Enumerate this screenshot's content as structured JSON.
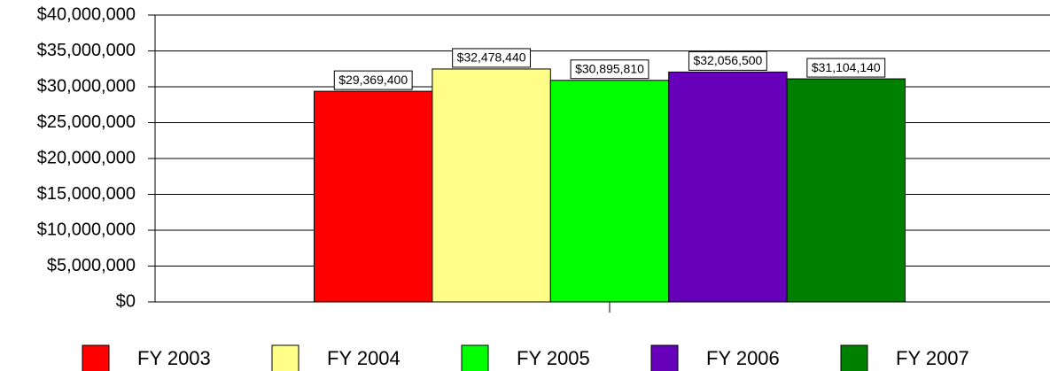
{
  "chart_data": {
    "type": "bar",
    "categories": [
      null
    ],
    "series": [
      {
        "name": "FY 2003",
        "color": "#ff0000",
        "values": [
          29369400
        ],
        "value_labels": [
          "$29,369,400"
        ]
      },
      {
        "name": "FY 2004",
        "color": "#ffff88",
        "values": [
          32478440
        ],
        "value_labels": [
          "$32,478,440"
        ]
      },
      {
        "name": "FY 2005",
        "color": "#00ff00",
        "values": [
          30895810
        ],
        "value_labels": [
          "$30,895,810"
        ]
      },
      {
        "name": "FY 2006",
        "color": "#6600bb",
        "values": [
          32056500
        ],
        "value_labels": [
          "$32,056,500"
        ]
      },
      {
        "name": "FY 2007",
        "color": "#008000",
        "values": [
          31104140
        ],
        "value_labels": [
          "$31,104,140"
        ]
      }
    ],
    "ylim": [
      0,
      40000000
    ],
    "yticks": [
      {
        "value": 0,
        "label": "$0"
      },
      {
        "value": 5000000,
        "label": "$5,000,000"
      },
      {
        "value": 10000000,
        "label": "$10,000,000"
      },
      {
        "value": 15000000,
        "label": "$15,000,000"
      },
      {
        "value": 20000000,
        "label": "$20,000,000"
      },
      {
        "value": 25000000,
        "label": "$25,000,000"
      },
      {
        "value": 30000000,
        "label": "$30,000,000"
      },
      {
        "value": 35000000,
        "label": "$35,000,000"
      },
      {
        "value": 40000000,
        "label": "$40,000,000"
      }
    ],
    "grid": true,
    "legend": "bottom"
  }
}
